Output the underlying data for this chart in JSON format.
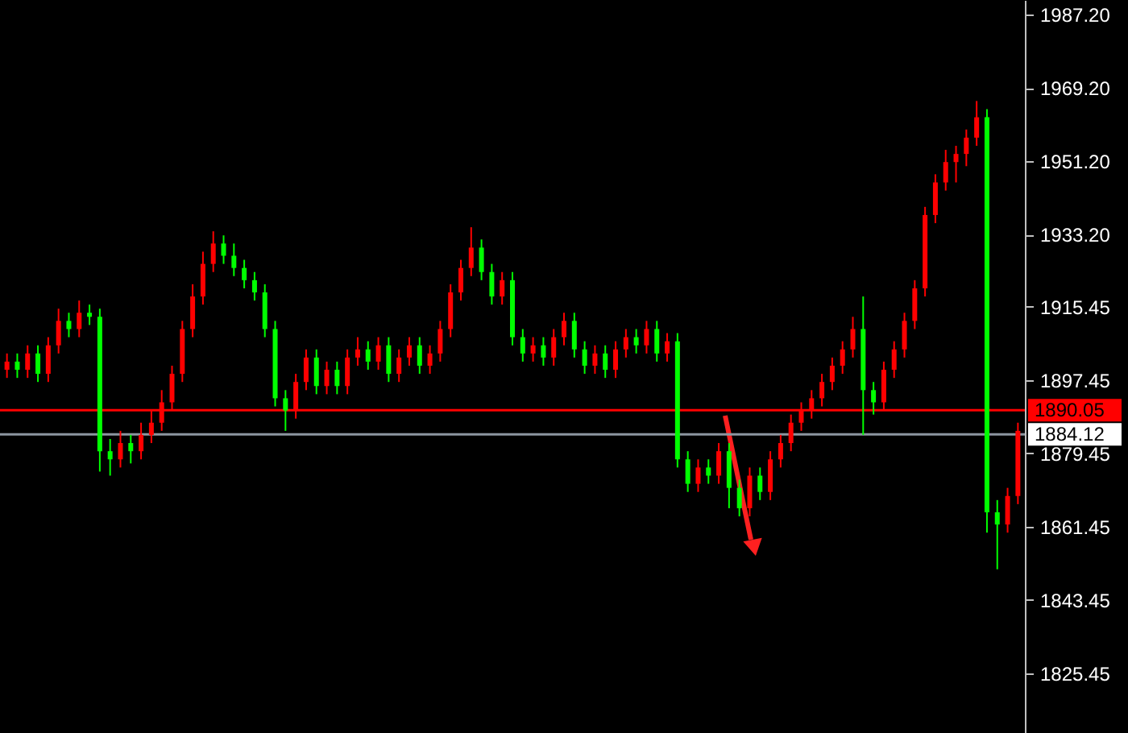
{
  "chart_data": {
    "type": "candlestick",
    "categories": [
      null,
      null,
      null,
      null,
      null,
      null,
      null,
      null,
      null,
      null,
      null,
      null,
      null,
      null,
      null,
      null,
      null,
      null,
      null,
      null,
      null,
      null,
      null,
      null,
      null,
      null,
      null,
      null,
      null,
      null,
      null,
      null,
      null,
      null,
      null,
      null,
      null,
      null,
      null,
      null,
      null,
      null,
      null,
      null,
      null,
      null,
      null,
      null,
      null,
      null,
      null,
      null,
      null,
      null,
      null,
      null,
      null,
      null,
      null,
      null,
      null,
      null,
      null,
      null,
      null,
      null,
      null,
      null,
      null,
      null,
      null,
      null,
      null,
      null,
      null,
      null,
      null,
      null,
      null,
      null,
      null,
      null,
      null,
      null,
      null,
      null,
      null,
      null,
      null,
      null,
      null,
      null,
      null,
      null,
      null,
      null,
      null,
      null,
      null
    ],
    "ohlc": [
      [
        1900,
        1904,
        1898,
        1902
      ],
      [
        1902,
        1904,
        1898,
        1900
      ],
      [
        1900,
        1906,
        1898,
        1904
      ],
      [
        1904,
        1906,
        1897,
        1899
      ],
      [
        1899,
        1908,
        1897,
        1906
      ],
      [
        1906,
        1915,
        1904,
        1912
      ],
      [
        1912,
        1914,
        1908,
        1910
      ],
      [
        1910,
        1917,
        1908,
        1914
      ],
      [
        1914,
        1916,
        1911,
        1913
      ],
      [
        1913,
        1915,
        1875,
        1880
      ],
      [
        1880,
        1883,
        1874,
        1878
      ],
      [
        1878,
        1885,
        1876,
        1882
      ],
      [
        1882,
        1884,
        1877,
        1880
      ],
      [
        1880,
        1887,
        1878,
        1884
      ],
      [
        1884,
        1890,
        1882,
        1887
      ],
      [
        1887,
        1895,
        1885,
        1892
      ],
      [
        1892,
        1901,
        1890,
        1899
      ],
      [
        1899,
        1912,
        1897,
        1910
      ],
      [
        1910,
        1921,
        1908,
        1918
      ],
      [
        1918,
        1929,
        1916,
        1926
      ],
      [
        1926,
        1934,
        1924,
        1931
      ],
      [
        1931,
        1933,
        1926,
        1928
      ],
      [
        1928,
        1931,
        1923,
        1925
      ],
      [
        1925,
        1927,
        1920,
        1922
      ],
      [
        1922,
        1924,
        1917,
        1919
      ],
      [
        1919,
        1921,
        1908,
        1910
      ],
      [
        1910,
        1912,
        1891,
        1893
      ],
      [
        1893,
        1895,
        1885,
        1890
      ],
      [
        1890,
        1899,
        1888,
        1897
      ],
      [
        1897,
        1905,
        1895,
        1903
      ],
      [
        1903,
        1905,
        1894,
        1896
      ],
      [
        1896,
        1902,
        1894,
        1900
      ],
      [
        1900,
        1902,
        1894,
        1896
      ],
      [
        1896,
        1905,
        1894,
        1903
      ],
      [
        1903,
        1908,
        1901,
        1905
      ],
      [
        1905,
        1907,
        1900,
        1902
      ],
      [
        1902,
        1908,
        1900,
        1906
      ],
      [
        1906,
        1908,
        1897,
        1899
      ],
      [
        1899,
        1905,
        1897,
        1903
      ],
      [
        1903,
        1908,
        1901,
        1906
      ],
      [
        1906,
        1908,
        1899,
        1901
      ],
      [
        1901,
        1906,
        1899,
        1904
      ],
      [
        1904,
        1912,
        1902,
        1910
      ],
      [
        1910,
        1921,
        1908,
        1919
      ],
      [
        1919,
        1927,
        1917,
        1925
      ],
      [
        1925,
        1935,
        1923,
        1930
      ],
      [
        1930,
        1932,
        1922,
        1924
      ],
      [
        1924,
        1926,
        1916,
        1918
      ],
      [
        1918,
        1924,
        1916,
        1922
      ],
      [
        1922,
        1924,
        1906,
        1908
      ],
      [
        1908,
        1910,
        1902,
        1904
      ],
      [
        1904,
        1908,
        1902,
        1906
      ],
      [
        1906,
        1908,
        1901,
        1903
      ],
      [
        1903,
        1910,
        1901,
        1908
      ],
      [
        1908,
        1914,
        1906,
        1912
      ],
      [
        1912,
        1914,
        1903,
        1905
      ],
      [
        1905,
        1907,
        1899,
        1901
      ],
      [
        1901,
        1906,
        1899,
        1904
      ],
      [
        1904,
        1906,
        1898,
        1900
      ],
      [
        1900,
        1907,
        1898,
        1905
      ],
      [
        1905,
        1910,
        1903,
        1908
      ],
      [
        1908,
        1910,
        1904,
        1906
      ],
      [
        1906,
        1912,
        1904,
        1910
      ],
      [
        1910,
        1912,
        1902,
        1904
      ],
      [
        1904,
        1909,
        1902,
        1907
      ],
      [
        1907,
        1909,
        1876,
        1878
      ],
      [
        1878,
        1880,
        1870,
        1872
      ],
      [
        1872,
        1878,
        1870,
        1876
      ],
      [
        1876,
        1878,
        1872,
        1874
      ],
      [
        1874,
        1882,
        1872,
        1880
      ],
      [
        1880,
        1882,
        1866,
        1871
      ],
      [
        1871,
        1873,
        1864,
        1866
      ],
      [
        1866,
        1876,
        1864,
        1874
      ],
      [
        1874,
        1876,
        1868,
        1870
      ],
      [
        1870,
        1880,
        1868,
        1878
      ],
      [
        1878,
        1884,
        1876,
        1882
      ],
      [
        1882,
        1889,
        1880,
        1887
      ],
      [
        1887,
        1892,
        1885,
        1890
      ],
      [
        1890,
        1895,
        1888,
        1893
      ],
      [
        1893,
        1899,
        1891,
        1897
      ],
      [
        1897,
        1903,
        1895,
        1901
      ],
      [
        1901,
        1907,
        1899,
        1905
      ],
      [
        1905,
        1913,
        1903,
        1910
      ],
      [
        1910,
        1918,
        1884,
        1895
      ],
      [
        1895,
        1897,
        1889,
        1892
      ],
      [
        1892,
        1902,
        1890,
        1900
      ],
      [
        1900,
        1907,
        1898,
        1905
      ],
      [
        1905,
        1914,
        1903,
        1912
      ],
      [
        1912,
        1922,
        1910,
        1920
      ],
      [
        1920,
        1940,
        1918,
        1938
      ],
      [
        1938,
        1948,
        1936,
        1946
      ],
      [
        1946,
        1954,
        1944,
        1951
      ],
      [
        1951,
        1955,
        1946,
        1953
      ],
      [
        1953,
        1959,
        1950,
        1957
      ],
      [
        1957,
        1966,
        1955,
        1962
      ],
      [
        1962,
        1964,
        1860,
        1865
      ],
      [
        1865,
        1868,
        1851,
        1862
      ],
      [
        1862,
        1871,
        1860,
        1869
      ],
      [
        1869,
        1887,
        1867,
        1885
      ]
    ],
    "colors": [
      "#ff0000",
      "#00ff00",
      "#ff0000",
      "#00ff00",
      "#ff0000",
      "#ff0000",
      "#00ff00",
      "#ff0000",
      "#00ff00",
      "#00ff00",
      "#00ff00",
      "#ff0000",
      "#00ff00",
      "#ff0000",
      "#ff0000",
      "#ff0000",
      "#ff0000",
      "#ff0000",
      "#ff0000",
      "#ff0000",
      "#ff0000",
      "#00ff00",
      "#00ff00",
      "#00ff00",
      "#00ff00",
      "#00ff00",
      "#00ff00",
      "#00ff00",
      "#ff0000",
      "#ff0000",
      "#00ff00",
      "#ff0000",
      "#00ff00",
      "#ff0000",
      "#ff0000",
      "#00ff00",
      "#ff0000",
      "#00ff00",
      "#ff0000",
      "#ff0000",
      "#00ff00",
      "#ff0000",
      "#ff0000",
      "#ff0000",
      "#ff0000",
      "#ff0000",
      "#00ff00",
      "#00ff00",
      "#ff0000",
      "#00ff00",
      "#00ff00",
      "#ff0000",
      "#00ff00",
      "#ff0000",
      "#ff0000",
      "#00ff00",
      "#00ff00",
      "#ff0000",
      "#00ff00",
      "#ff0000",
      "#ff0000",
      "#00ff00",
      "#ff0000",
      "#00ff00",
      "#ff0000",
      "#00ff00",
      "#00ff00",
      "#ff0000",
      "#00ff00",
      "#ff0000",
      "#00ff00",
      "#00ff00",
      "#ff0000",
      "#00ff00",
      "#ff0000",
      "#ff0000",
      "#ff0000",
      "#ff0000",
      "#ff0000",
      "#ff0000",
      "#ff0000",
      "#ff0000",
      "#ff0000",
      "#00ff00",
      "#00ff00",
      "#ff0000",
      "#ff0000",
      "#ff0000",
      "#ff0000",
      "#ff0000",
      "#ff0000",
      "#ff0000",
      "#ff0000",
      "#ff0000",
      "#ff0000",
      "#00ff00",
      "#00ff00",
      "#ff0000",
      "#ff0000"
    ],
    "ylim": [
      1810.8,
      1990.8
    ],
    "yticks": [
      {
        "value": 1987.2,
        "label": "1987.20"
      },
      {
        "value": 1969.2,
        "label": "1969.20"
      },
      {
        "value": 1951.2,
        "label": "1951.20"
      },
      {
        "value": 1933.2,
        "label": "1933.20"
      },
      {
        "value": 1915.45,
        "label": "1915.45"
      },
      {
        "value": 1897.45,
        "label": "1897.45"
      },
      {
        "value": 1879.45,
        "label": "1879.45"
      },
      {
        "value": 1861.45,
        "label": "1861.45"
      },
      {
        "value": 1843.45,
        "label": "1843.45"
      },
      {
        "value": 1825.45,
        "label": "1825.45"
      }
    ],
    "ref_lines": [
      {
        "axis": "y",
        "value": 1890.05,
        "label": "1890.05",
        "color": "#ff0000"
      },
      {
        "axis": "y",
        "value": 1884.12,
        "label": "1884.12",
        "color": "#8c96a0"
      }
    ],
    "tick_labels": "y"
  }
}
